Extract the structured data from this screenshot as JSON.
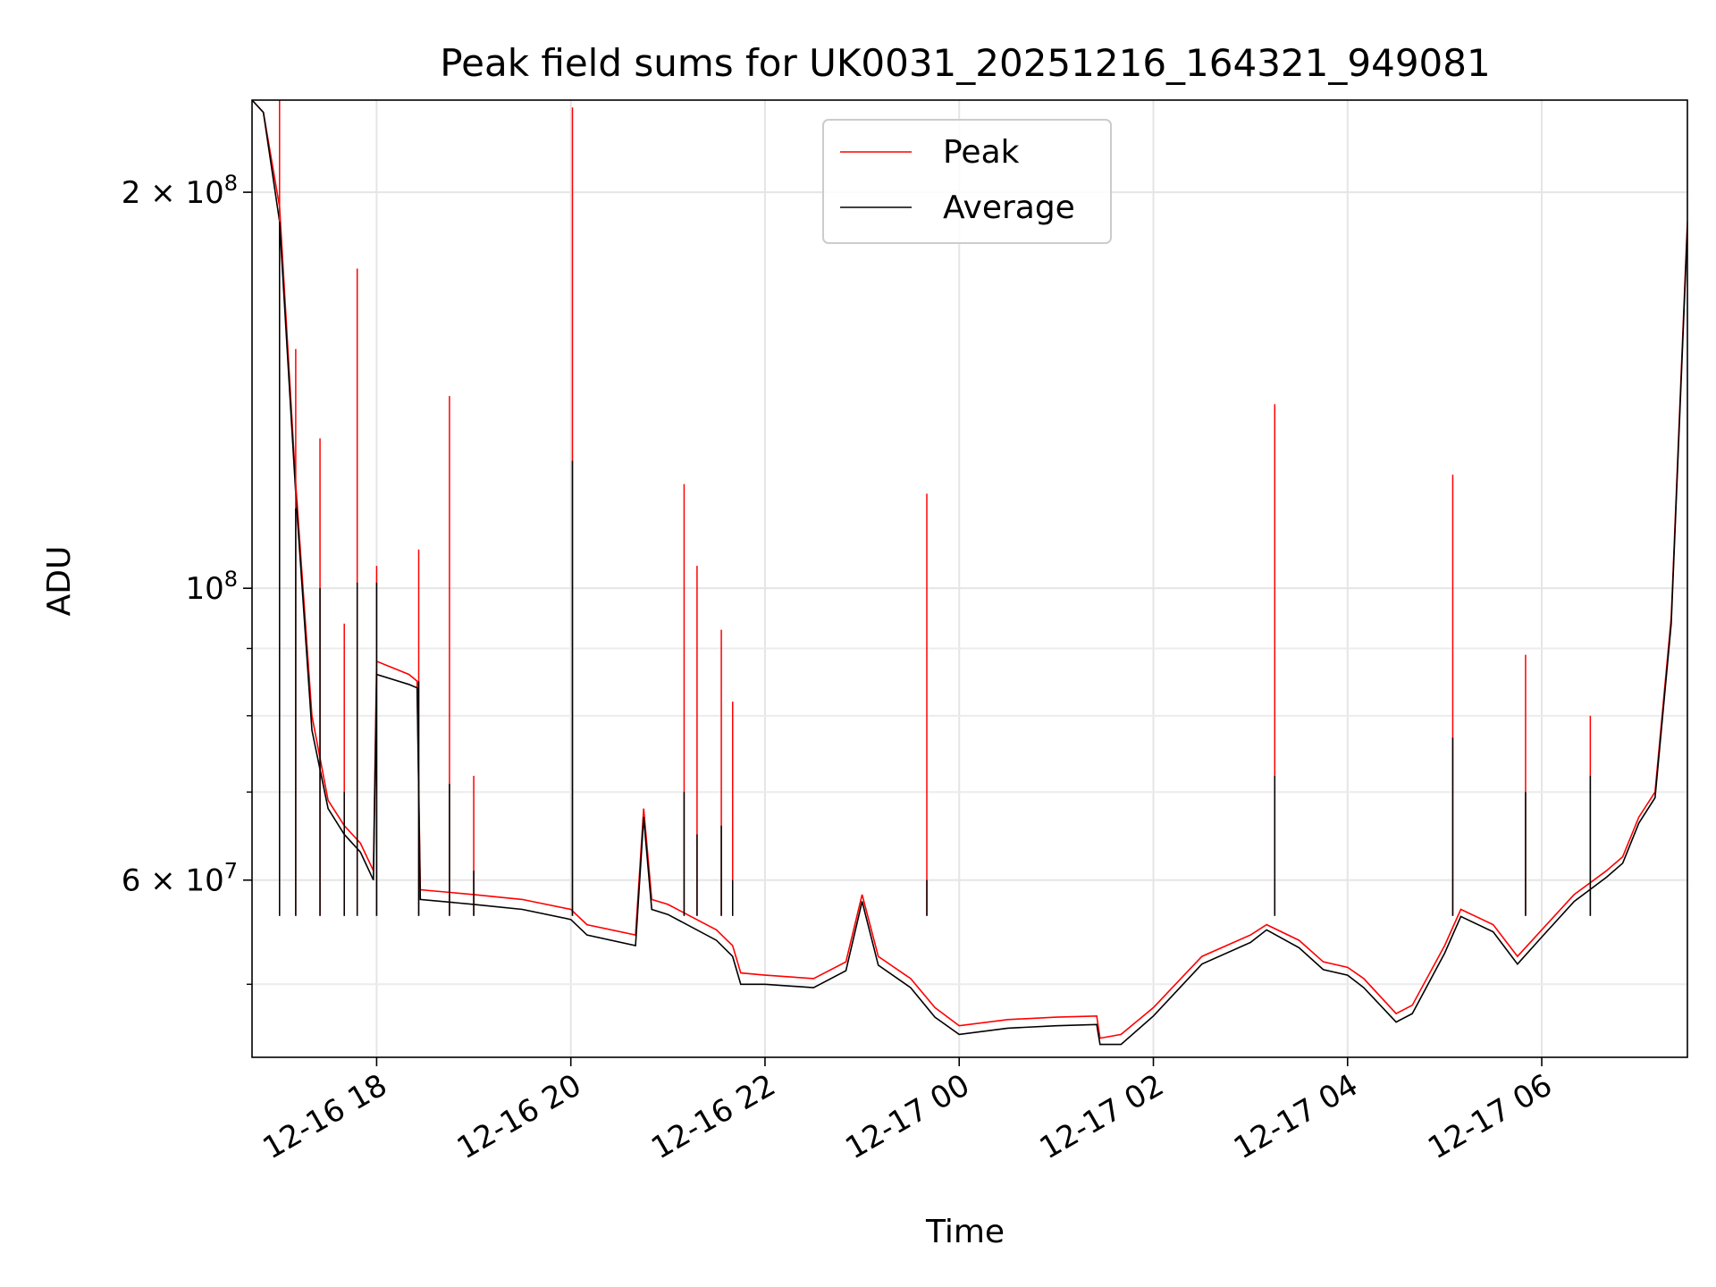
{
  "chart_data": {
    "type": "line",
    "title": "Peak field sums for UK0031_20251216_164321_949081",
    "xlabel": "Time",
    "ylabel": "ADU",
    "x_range": [
      "2025-12-16 16:43",
      "2025-12-17 07:30"
    ],
    "yscale": "log",
    "ylim": [
      44000000,
      235000000
    ],
    "grid": true,
    "legend_position": "upper center",
    "x_ticks": [
      {
        "t": "2025-12-16 18:00",
        "label": "12-16 18"
      },
      {
        "t": "2025-12-16 20:00",
        "label": "12-16 20"
      },
      {
        "t": "2025-12-16 22:00",
        "label": "12-16 22"
      },
      {
        "t": "2025-12-17 00:00",
        "label": "12-17 00"
      },
      {
        "t": "2025-12-17 02:00",
        "label": "12-17 02"
      },
      {
        "t": "2025-12-17 04:00",
        "label": "12-17 04"
      },
      {
        "t": "2025-12-17 06:00",
        "label": "12-17 06"
      }
    ],
    "y_ticks": [
      {
        "value": 200000000,
        "mantissa": "2",
        "exp": "8"
      },
      {
        "value": 100000000,
        "mantissa": "",
        "exp": "8"
      },
      {
        "value": 60000000,
        "mantissa": "6",
        "exp": "7"
      }
    ],
    "y_minor_ticks": [
      50000000,
      70000000,
      80000000,
      90000000
    ],
    "series": [
      {
        "name": "Peak",
        "color": "#ff0000",
        "x": [
          "2025-12-16 16:43",
          "2025-12-16 16:50",
          "2025-12-16 17:00",
          "2025-12-16 17:10",
          "2025-12-16 17:20",
          "2025-12-16 17:30",
          "2025-12-16 17:40",
          "2025-12-16 17:50",
          "2025-12-16 17:58",
          "2025-12-16 18:00",
          "2025-12-16 18:20",
          "2025-12-16 18:25",
          "2025-12-16 18:27",
          "2025-12-16 19:00",
          "2025-12-16 19:30",
          "2025-12-16 20:00",
          "2025-12-16 20:10",
          "2025-12-16 20:40",
          "2025-12-16 20:45",
          "2025-12-16 20:50",
          "2025-12-16 21:00",
          "2025-12-16 21:30",
          "2025-12-16 21:40",
          "2025-12-16 21:45",
          "2025-12-16 22:00",
          "2025-12-16 22:30",
          "2025-12-16 22:50",
          "2025-12-16 23:00",
          "2025-12-16 23:10",
          "2025-12-16 23:30",
          "2025-12-16 23:45",
          "2025-12-17 00:00",
          "2025-12-17 00:30",
          "2025-12-17 01:00",
          "2025-12-17 01:25",
          "2025-12-17 01:27",
          "2025-12-17 01:40",
          "2025-12-17 02:00",
          "2025-12-17 02:30",
          "2025-12-17 03:00",
          "2025-12-17 03:10",
          "2025-12-17 03:30",
          "2025-12-17 03:45",
          "2025-12-17 04:00",
          "2025-12-17 04:10",
          "2025-12-17 04:30",
          "2025-12-17 04:40",
          "2025-12-17 05:00",
          "2025-12-17 05:10",
          "2025-12-17 05:30",
          "2025-12-17 05:45",
          "2025-12-17 06:00",
          "2025-12-17 06:20",
          "2025-12-17 06:40",
          "2025-12-17 06:50",
          "2025-12-17 07:00",
          "2025-12-17 07:10",
          "2025-12-17 07:20",
          "2025-12-17 07:30"
        ],
        "y": [
          235000000,
          230000000,
          195000000,
          120000000,
          80000000,
          69000000,
          66000000,
          64000000,
          61000000,
          88000000,
          86000000,
          85000000,
          59000000,
          58500000,
          58000000,
          57000000,
          55500000,
          54500000,
          68000000,
          58000000,
          57500000,
          55000000,
          53500000,
          51000000,
          50800000,
          50500000,
          52000000,
          58500000,
          52500000,
          50500000,
          48000000,
          46500000,
          47000000,
          47200000,
          47300000,
          45500000,
          45800000,
          48000000,
          52500000,
          54500000,
          55500000,
          54000000,
          52000000,
          51500000,
          50500000,
          47500000,
          48200000,
          53500000,
          57000000,
          55500000,
          52500000,
          55000000,
          58500000,
          61000000,
          62500000,
          67000000,
          70000000,
          95000000,
          190000000
        ],
        "spikes": [
          {
            "t": "2025-12-16 17:00",
            "peak": 235000000,
            "avg": 190000000
          },
          {
            "t": "2025-12-16 17:10",
            "peak": 152000000,
            "avg": 115000000
          },
          {
            "t": "2025-12-16 17:25",
            "peak": 130000000,
            "avg": 100000000
          },
          {
            "t": "2025-12-16 17:40",
            "peak": 94000000,
            "avg": 70000000
          },
          {
            "t": "2025-12-16 17:48",
            "peak": 175000000,
            "avg": 101000000
          },
          {
            "t": "2025-12-16 18:00",
            "peak": 104000000,
            "avg": 101000000
          },
          {
            "t": "2025-12-16 18:26",
            "peak": 107000000,
            "avg": 85000000
          },
          {
            "t": "2025-12-16 18:45",
            "peak": 140000000,
            "avg": 71000000
          },
          {
            "t": "2025-12-16 19:00",
            "peak": 72000000,
            "avg": 61000000
          },
          {
            "t": "2025-12-16 20:01",
            "peak": 232000000,
            "avg": 125000000
          },
          {
            "t": "2025-12-16 21:10",
            "peak": 120000000,
            "avg": 70000000
          },
          {
            "t": "2025-12-16 21:18",
            "peak": 104000000,
            "avg": 65000000
          },
          {
            "t": "2025-12-16 21:33",
            "peak": 93000000,
            "avg": 66000000
          },
          {
            "t": "2025-12-16 21:40",
            "peak": 82000000,
            "avg": 60000000
          },
          {
            "t": "2025-12-16 23:40",
            "peak": 118000000,
            "avg": 60000000
          },
          {
            "t": "2025-12-17 03:15",
            "peak": 138000000,
            "avg": 72000000
          },
          {
            "t": "2025-12-17 05:05",
            "peak": 122000000,
            "avg": 77000000
          },
          {
            "t": "2025-12-17 05:50",
            "peak": 89000000,
            "avg": 70000000
          },
          {
            "t": "2025-12-17 06:30",
            "peak": 80000000,
            "avg": 72000000
          }
        ]
      },
      {
        "name": "Average",
        "color": "#000000",
        "x": [
          "2025-12-16 16:43",
          "2025-12-16 16:50",
          "2025-12-16 17:00",
          "2025-12-16 17:10",
          "2025-12-16 17:20",
          "2025-12-16 17:30",
          "2025-12-16 17:40",
          "2025-12-16 17:50",
          "2025-12-16 17:58",
          "2025-12-16 18:00",
          "2025-12-16 18:20",
          "2025-12-16 18:25",
          "2025-12-16 18:27",
          "2025-12-16 19:00",
          "2025-12-16 19:30",
          "2025-12-16 20:00",
          "2025-12-16 20:10",
          "2025-12-16 20:40",
          "2025-12-16 20:45",
          "2025-12-16 20:50",
          "2025-12-16 21:00",
          "2025-12-16 21:30",
          "2025-12-16 21:40",
          "2025-12-16 21:45",
          "2025-12-16 22:00",
          "2025-12-16 22:30",
          "2025-12-16 22:50",
          "2025-12-16 23:00",
          "2025-12-16 23:10",
          "2025-12-16 23:30",
          "2025-12-16 23:45",
          "2025-12-17 00:00",
          "2025-12-17 00:30",
          "2025-12-17 01:00",
          "2025-12-17 01:25",
          "2025-12-17 01:27",
          "2025-12-17 01:40",
          "2025-12-17 02:00",
          "2025-12-17 02:30",
          "2025-12-17 03:00",
          "2025-12-17 03:10",
          "2025-12-17 03:30",
          "2025-12-17 03:45",
          "2025-12-17 04:00",
          "2025-12-17 04:10",
          "2025-12-17 04:30",
          "2025-12-17 04:40",
          "2025-12-17 05:00",
          "2025-12-17 05:10",
          "2025-12-17 05:30",
          "2025-12-17 05:45",
          "2025-12-17 06:00",
          "2025-12-17 06:20",
          "2025-12-17 06:40",
          "2025-12-17 06:50",
          "2025-12-17 07:00",
          "2025-12-17 07:10",
          "2025-12-17 07:20",
          "2025-12-17 07:30"
        ],
        "y": [
          235000000,
          230000000,
          190000000,
          118000000,
          78000000,
          68000000,
          65000000,
          63000000,
          60000000,
          86000000,
          84500000,
          84000000,
          58000000,
          57500000,
          57000000,
          56000000,
          54500000,
          53500000,
          67000000,
          57000000,
          56500000,
          54000000,
          52500000,
          50000000,
          50000000,
          49700000,
          51200000,
          57800000,
          51700000,
          49700000,
          47200000,
          45800000,
          46300000,
          46500000,
          46600000,
          45000000,
          45000000,
          47300000,
          51800000,
          53800000,
          55000000,
          53300000,
          51300000,
          50800000,
          49700000,
          46800000,
          47500000,
          52800000,
          56300000,
          54800000,
          51800000,
          54300000,
          57800000,
          60300000,
          61800000,
          66300000,
          69300000,
          94000000,
          188000000
        ]
      }
    ]
  }
}
